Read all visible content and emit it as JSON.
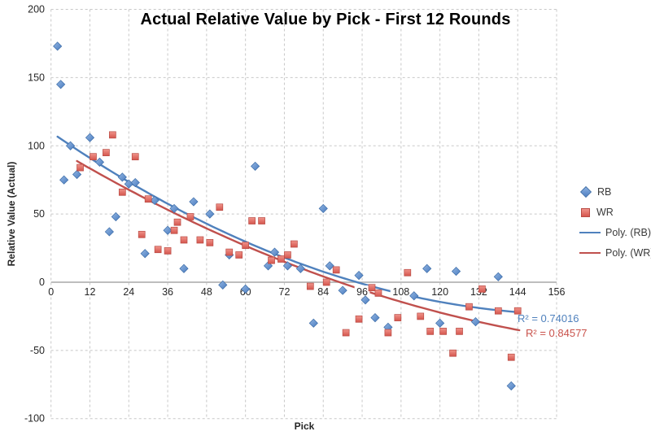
{
  "chart_data": {
    "type": "scatter",
    "title": "Actual Relative Value by Pick - First 12 Rounds",
    "xlabel": "Pick",
    "ylabel": "Relative Value (Actual)",
    "xlim": [
      0,
      156
    ],
    "ylim": [
      -100,
      200
    ],
    "x_ticks": [
      0,
      12,
      24,
      36,
      48,
      60,
      72,
      84,
      96,
      108,
      120,
      132,
      144,
      156
    ],
    "y_ticks": [
      200,
      150,
      100,
      50,
      0,
      -50,
      -100
    ],
    "grid": "dashed",
    "legend_position": "right",
    "series": [
      {
        "name": "RB",
        "marker": "diamond",
        "color": "#5b8bd0",
        "points": [
          [
            2,
            173
          ],
          [
            3,
            145
          ],
          [
            4,
            75
          ],
          [
            6,
            100
          ],
          [
            8,
            79
          ],
          [
            12,
            106
          ],
          [
            15,
            88
          ],
          [
            18,
            37
          ],
          [
            20,
            48
          ],
          [
            22,
            77
          ],
          [
            24,
            72
          ],
          [
            26,
            73
          ],
          [
            29,
            21
          ],
          [
            32,
            60
          ],
          [
            36,
            38
          ],
          [
            38,
            54
          ],
          [
            41,
            10
          ],
          [
            44,
            59
          ],
          [
            49,
            50
          ],
          [
            53,
            -2
          ],
          [
            55,
            20
          ],
          [
            60,
            -5
          ],
          [
            63,
            85
          ],
          [
            67,
            12
          ],
          [
            69,
            22
          ],
          [
            73,
            12
          ],
          [
            77,
            10
          ],
          [
            81,
            -30
          ],
          [
            84,
            54
          ],
          [
            86,
            12
          ],
          [
            90,
            -6
          ],
          [
            95,
            5
          ],
          [
            97,
            -13
          ],
          [
            100,
            -26
          ],
          [
            104,
            -33
          ],
          [
            112,
            -10
          ],
          [
            116,
            10
          ],
          [
            120,
            -30
          ],
          [
            125,
            8
          ],
          [
            131,
            -29
          ],
          [
            138,
            4
          ],
          [
            142,
            -76
          ]
        ]
      },
      {
        "name": "WR",
        "marker": "square",
        "color": "#e0695f",
        "points": [
          [
            9,
            84
          ],
          [
            13,
            92
          ],
          [
            17,
            95
          ],
          [
            19,
            108
          ],
          [
            22,
            66
          ],
          [
            26,
            92
          ],
          [
            28,
            35
          ],
          [
            30,
            61
          ],
          [
            33,
            24
          ],
          [
            36,
            23
          ],
          [
            38,
            38
          ],
          [
            39,
            44
          ],
          [
            41,
            31
          ],
          [
            43,
            48
          ],
          [
            46,
            31
          ],
          [
            49,
            29
          ],
          [
            52,
            55
          ],
          [
            55,
            22
          ],
          [
            58,
            20
          ],
          [
            60,
            27
          ],
          [
            62,
            45
          ],
          [
            65,
            45
          ],
          [
            68,
            16
          ],
          [
            71,
            17
          ],
          [
            73,
            20
          ],
          [
            75,
            28
          ],
          [
            80,
            -3
          ],
          [
            85,
            0
          ],
          [
            88,
            9
          ],
          [
            91,
            -37
          ],
          [
            95,
            -27
          ],
          [
            99,
            -4
          ],
          [
            101,
            -8
          ],
          [
            104,
            -37
          ],
          [
            107,
            -26
          ],
          [
            110,
            7
          ],
          [
            114,
            -25
          ],
          [
            117,
            -36
          ],
          [
            121,
            -36
          ],
          [
            124,
            -52
          ],
          [
            126,
            -36
          ],
          [
            129,
            -18
          ],
          [
            133,
            -5
          ],
          [
            138,
            -21
          ],
          [
            142,
            -55
          ],
          [
            144,
            -21
          ]
        ]
      }
    ],
    "trendlines": [
      {
        "name": "Poly. (RB)",
        "color": "#4f81bd",
        "poly2": {
          "a": 0.00502,
          "b": -1.639,
          "c": 110
        },
        "domain": [
          2,
          145
        ],
        "r2_label": "R² = 0.74016"
      },
      {
        "name": "Poly. (WR)",
        "color": "#c0504d",
        "poly2": {
          "a": 0.00338,
          "b": -1.424,
          "c": 100
        },
        "domain": [
          8,
          145
        ],
        "r2_label": "R² = 0.84577"
      }
    ]
  }
}
